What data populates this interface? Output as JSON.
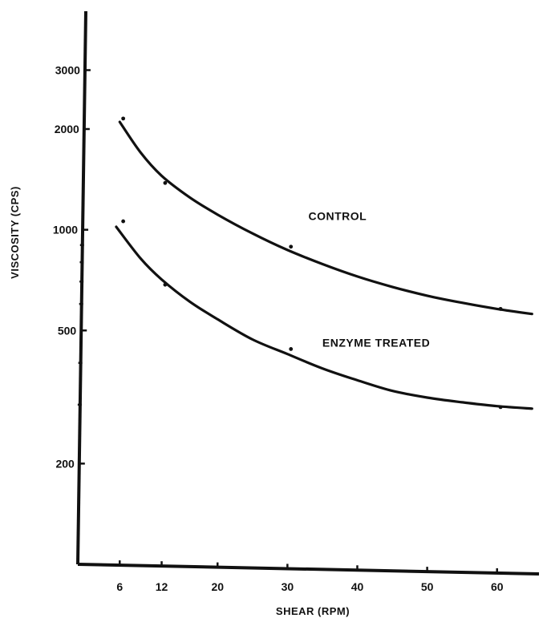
{
  "chart_data": {
    "type": "line",
    "title": "",
    "xlabel": "SHEAR (RPM)",
    "ylabel": "VISCOSITY (CPS)",
    "x_ticks": [
      6,
      12,
      20,
      30,
      40,
      50,
      60
    ],
    "y_ticks": [
      200,
      500,
      1000,
      2000,
      3000
    ],
    "y_scale": "log",
    "xlim": [
      0,
      66
    ],
    "ylim": [
      100,
      4500
    ],
    "grid": false,
    "series": [
      {
        "name": "CONTROL",
        "points": [
          [
            6.5,
            2150
          ],
          [
            12.5,
            1380
          ],
          [
            30.5,
            890
          ],
          [
            60.5,
            580
          ]
        ],
        "curve": [
          [
            6,
            2100
          ],
          [
            9,
            1700
          ],
          [
            12,
            1450
          ],
          [
            16,
            1250
          ],
          [
            20,
            1110
          ],
          [
            25,
            975
          ],
          [
            30,
            870
          ],
          [
            35,
            790
          ],
          [
            40,
            725
          ],
          [
            45,
            675
          ],
          [
            50,
            635
          ],
          [
            55,
            605
          ],
          [
            60,
            580
          ],
          [
            65,
            560
          ]
        ]
      },
      {
        "name": "ENZYME TREATED",
        "points": [
          [
            6.5,
            1060
          ],
          [
            12.5,
            685
          ],
          [
            30.5,
            440
          ],
          [
            60.5,
            295
          ]
        ],
        "curve": [
          [
            5.5,
            1020
          ],
          [
            9,
            820
          ],
          [
            12,
            710
          ],
          [
            16,
            610
          ],
          [
            20,
            540
          ],
          [
            25,
            470
          ],
          [
            30,
            425
          ],
          [
            35,
            385
          ],
          [
            40,
            355
          ],
          [
            45,
            330
          ],
          [
            50,
            315
          ],
          [
            55,
            305
          ],
          [
            60,
            297
          ],
          [
            65,
            292
          ]
        ]
      }
    ],
    "series_label_anchor": [
      {
        "x": 33,
        "y": 1100
      },
      {
        "x": 35,
        "y": 460
      }
    ]
  }
}
